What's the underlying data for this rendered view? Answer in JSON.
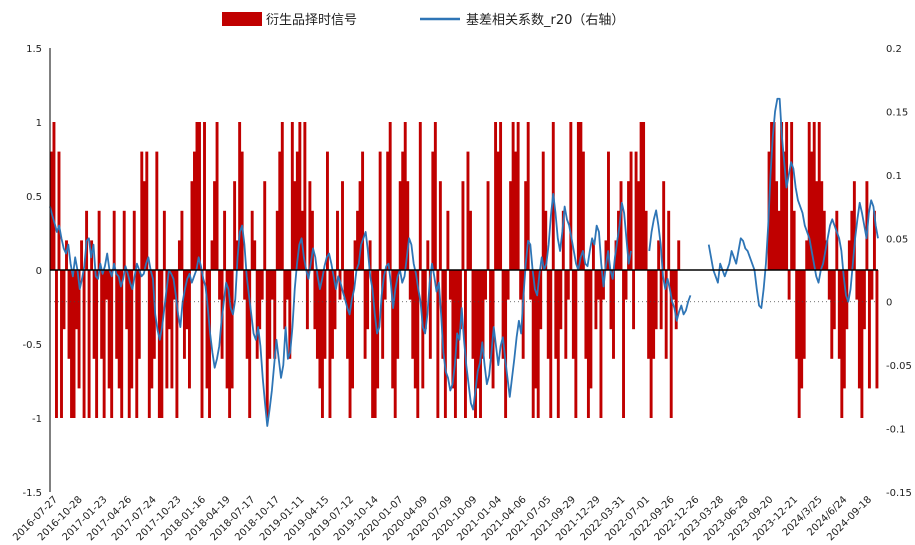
{
  "chart_data": {
    "type": "bar+line",
    "title": "",
    "legend": {
      "placement": "top-center",
      "entries": [
        "衍生品择时信号",
        "基差相关系数_r20（右轴）"
      ]
    },
    "colors": {
      "signal": "#c00000",
      "corr": "#2e75b6"
    },
    "left_axis": {
      "ylim": [
        -1.5,
        1.5
      ],
      "ticks": [
        "1.5",
        "1",
        "0.5",
        "0",
        "-0.5",
        "-1",
        "-1.5"
      ],
      "tick_values": [
        1.5,
        1,
        0.5,
        0,
        -0.5,
        -1,
        -1.5
      ]
    },
    "right_axis": {
      "ylim": [
        -0.15,
        0.2
      ],
      "ticks": [
        "0.2",
        "0.15",
        "0.1",
        "0.05",
        "0",
        "-0.05",
        "-0.1",
        "-0.15"
      ],
      "tick_values": [
        0.2,
        0.15,
        0.1,
        0.05,
        0,
        -0.05,
        -0.1,
        -0.15
      ]
    },
    "x_labels": [
      "2016-07-27",
      "2016-10-28",
      "2017-01-23",
      "2017-04-26",
      "2017-07-24",
      "2017-10-23",
      "2018-01-16",
      "2018-04-19",
      "2018-07-17",
      "2018-10-17",
      "2019-01-11",
      "2019-04-15",
      "2019-07-12",
      "2019-10-14",
      "2020-01-07",
      "2020-04-09",
      "2020-07-09",
      "2020-10-09",
      "2021-01-04",
      "2021-04-06",
      "2021-07-05",
      "2021-09-29",
      "2021-12-29",
      "2022-03-31",
      "2022-07-01",
      "2022-09-26",
      "2022-12-26",
      "2023-03-28",
      "2023-06-28",
      "2023-09-20",
      "2023-12-21",
      "2024/3/25",
      "2024/6/24",
      "2024-09-18"
    ],
    "series": [
      {
        "name": "衍生品择时信号",
        "kind": "bar",
        "axis": "left",
        "values": [
          0.8,
          1,
          -1,
          0.8,
          -1,
          -0.4,
          0.2,
          -0.6,
          -1,
          -1,
          -0.4,
          -0.8,
          0.2,
          -1,
          0.4,
          -1,
          0.2,
          -0.6,
          -1,
          0.4,
          -0.6,
          -1,
          -0.2,
          -0.8,
          -1,
          0.4,
          -0.6,
          -0.8,
          -1,
          0.4,
          -0.4,
          -1,
          -0.8,
          0.4,
          -1,
          -0.6,
          0.8,
          0.6,
          0.8,
          -1,
          -0.8,
          -0.6,
          0.8,
          -1,
          -1,
          0.4,
          -0.8,
          -0.4,
          -0.8,
          -0.2,
          -1,
          0.2,
          0.4,
          -0.6,
          -0.4,
          -0.8,
          0.6,
          0.8,
          1,
          1,
          -1,
          1,
          -0.8,
          -1,
          0.2,
          0.6,
          1,
          -0.2,
          -0.6,
          0.4,
          -0.8,
          -1,
          -0.8,
          0.6,
          0.2,
          1,
          0.8,
          -0.2,
          -0.6,
          -1,
          0.4,
          0.2,
          -0.6,
          -0.4,
          -0.2,
          0.6,
          -1,
          -0.6,
          -0.2,
          -0.6,
          0.4,
          0.8,
          1,
          -0.4,
          -0.2,
          -0.6,
          1,
          0.6,
          0.8,
          1,
          0.4,
          1,
          -0.4,
          0.6,
          0.4,
          -0.4,
          -0.6,
          -0.8,
          -1,
          -0.6,
          0.8,
          -1,
          -0.6,
          -0.4,
          0.4,
          -0.2,
          0.6,
          -0.2,
          -0.6,
          -1,
          -0.8,
          0.2,
          0.4,
          0.6,
          0.8,
          -0.6,
          -0.4,
          0.2,
          -1,
          -1,
          -0.8,
          0.8,
          -0.6,
          -0.2,
          0.8,
          1,
          -0.8,
          -1,
          -0.6,
          0.6,
          0.8,
          1,
          0.6,
          -0.2,
          -0.6,
          -0.8,
          -1,
          1,
          -0.8,
          -0.4,
          0.2,
          -0.6,
          0.8,
          1,
          -1,
          0.6,
          -0.6,
          -1,
          0.4,
          -0.2,
          -0.8,
          -1,
          -0.6,
          -0.4,
          0.6,
          -1,
          0.8,
          0.4,
          -0.6,
          -1,
          -0.8,
          -1,
          -0.6,
          -0.2,
          0.6,
          -0.6,
          -0.8,
          1,
          0.8,
          1,
          -0.6,
          -1,
          -0.2,
          0.6,
          1,
          0.8,
          1,
          -0.2,
          -0.6,
          0.6,
          1,
          -0.2,
          -1,
          -0.8,
          -1,
          -0.4,
          0.8,
          0.4,
          -0.6,
          -1,
          1,
          -0.6,
          -1,
          -0.4,
          0.4,
          -0.6,
          -0.2,
          1,
          -0.6,
          -1,
          1,
          1,
          0.8,
          -0.6,
          -1,
          -0.8,
          0.2,
          -0.4,
          -0.2,
          -1,
          -0.2,
          0.2,
          0.8,
          -0.4,
          -0.6,
          0.2,
          0.4,
          0.6,
          -1,
          -0.2,
          0.6,
          0.8,
          -0.4,
          0.8,
          0.6,
          1,
          1,
          0.4,
          -0.6,
          -1,
          -0.6,
          -0.4,
          0.2,
          -0.4,
          0.6,
          -0.6,
          0.4,
          -1,
          -0.2,
          -0.4,
          0.2,
          0,
          0,
          0,
          0,
          0,
          0,
          0,
          0,
          0,
          0,
          0,
          0,
          0,
          0,
          0,
          0,
          0,
          0,
          0,
          0,
          0,
          0,
          0,
          0,
          0,
          0,
          0,
          0,
          0,
          0,
          0,
          0,
          0,
          0,
          0,
          0.8,
          1,
          1,
          0.6,
          0.4,
          1,
          0.8,
          1,
          -0.2,
          1,
          0.4,
          -0.6,
          -1,
          -0.8,
          -0.6,
          0.2,
          1,
          0.8,
          1,
          0.6,
          1,
          0.6,
          0.4,
          0.2,
          -0.2,
          -0.6,
          -0.4,
          0.4,
          -0.6,
          -1,
          -0.8,
          -0.4,
          0.2,
          0.4,
          0.6,
          -0.2,
          -0.8,
          -1,
          -0.4,
          0.6,
          -0.8,
          -0.2,
          0.4,
          -0.8
        ]
      },
      {
        "name": "基差相关系数_r20（右轴）",
        "kind": "line",
        "axis": "right",
        "values": [
          0.075,
          0.068,
          0.062,
          0.055,
          0.06,
          0.05,
          0.042,
          0.038,
          0.045,
          0.03,
          0.02,
          0.035,
          0.025,
          0.01,
          0.018,
          0.028,
          0.048,
          0.05,
          0.035,
          0.045,
          0.02,
          0.018,
          0.03,
          0.022,
          0.028,
          0.038,
          0.025,
          0.02,
          0.03,
          0.022,
          0.02,
          0.012,
          0.018,
          0.028,
          0.022,
          0.015,
          0.01,
          0.02,
          0.03,
          0.025,
          0.02,
          0.022,
          0.03,
          0.035,
          0.025,
          0.018,
          -0.01,
          -0.022,
          -0.03,
          -0.02,
          -0.005,
          0.01,
          0.025,
          0.022,
          0.018,
          0.005,
          -0.01,
          -0.02,
          0,
          0.01,
          0.018,
          0.022,
          0.015,
          0.02,
          0.025,
          0.035,
          0.028,
          0.018,
          0.012,
          -0.005,
          -0.025,
          -0.04,
          -0.052,
          -0.045,
          -0.035,
          -0.015,
          0,
          0.015,
          0.01,
          -0.005,
          -0.01,
          0.002,
          0.035,
          0.055,
          0.06,
          0.045,
          0.02,
          0.005,
          -0.01,
          -0.025,
          -0.03,
          -0.02,
          -0.035,
          -0.06,
          -0.08,
          -0.098,
          -0.085,
          -0.07,
          -0.05,
          -0.03,
          -0.045,
          -0.06,
          -0.05,
          -0.02,
          -0.045,
          -0.04,
          -0.02,
          0.01,
          0.03,
          0.045,
          0.05,
          0.035,
          0.025,
          0.018,
          0.03,
          0.042,
          0.035,
          0.02,
          0.01,
          0.018,
          0.028,
          0.035,
          0.038,
          0.03,
          0.02,
          0.01,
          0.02,
          0.015,
          0.008,
          0.002,
          -0.005,
          -0.01,
          0.002,
          0.01,
          0.025,
          0.03,
          0.045,
          0.05,
          0.055,
          0.04,
          0.02,
          0.01,
          -0.01,
          -0.025,
          -0.02,
          0.005,
          0.02,
          0.028,
          0.03,
          0.015,
          -0.005,
          0.01,
          0.02,
          0.025,
          0.015,
          0.02,
          0.035,
          0.05,
          0.045,
          0.03,
          0.022,
          0.01,
          0,
          -0.02,
          -0.025,
          -0.01,
          0.015,
          0.03,
          0.02,
          0.008,
          0.015,
          -0.01,
          -0.04,
          -0.055,
          -0.06,
          -0.07,
          -0.065,
          -0.05,
          -0.025,
          -0.03,
          -0.005,
          -0.03,
          -0.05,
          -0.065,
          -0.08,
          -0.085,
          -0.07,
          -0.055,
          -0.048,
          -0.032,
          -0.05,
          -0.065,
          -0.058,
          -0.04,
          -0.02,
          -0.035,
          -0.05,
          -0.035,
          -0.028,
          -0.045,
          -0.06,
          -0.075,
          -0.06,
          -0.045,
          -0.028,
          -0.015,
          -0.025,
          0.005,
          0.03,
          0.048,
          0.045,
          0.025,
          0.01,
          0.005,
          0.022,
          0.035,
          0.025,
          0.03,
          0.045,
          0.068,
          0.085,
          0.07,
          0.05,
          0.04,
          0.055,
          0.075,
          0.065,
          0.06,
          0.05,
          0.04,
          0.03,
          0.025,
          0.035,
          0.04,
          0.03,
          0.028,
          0.04,
          0.05,
          0.045,
          0.06,
          0.055,
          0.03,
          0.012,
          0.028,
          0.04,
          0.025,
          0.018,
          0.035,
          0.048,
          0.06,
          0.078,
          0.07,
          0.05,
          0.03,
          0.04,
          null,
          null,
          null,
          null,
          null,
          null,
          null,
          0.04,
          0.055,
          0.065,
          0.072,
          0.06,
          0.045,
          0.02,
          0.01,
          0.018,
          0.01,
          0,
          -0.005,
          -0.015,
          -0.008,
          -0.003,
          -0.01,
          -0.007,
          0,
          0.005,
          null,
          null,
          null,
          null,
          null,
          null,
          null,
          0.045,
          0.035,
          0.025,
          0.02,
          0.015,
          0.03,
          0.025,
          0.02,
          0.025,
          0.03,
          0.04,
          0.035,
          0.03,
          0.04,
          0.05,
          0.048,
          0.042,
          0.04,
          0.035,
          0.03,
          0.025,
          0.01,
          -0.003,
          -0.005,
          0.01,
          0.03,
          0.06,
          0.1,
          0.13,
          0.15,
          0.16,
          0.16,
          0.13,
          0.11,
          0.09,
          0.1,
          0.11,
          0.105,
          0.09,
          0.08,
          0.075,
          0.07,
          0.06,
          0.055,
          0.05,
          0.04,
          0.03,
          0.02,
          0.015,
          0.025,
          0.03,
          0.04,
          0.05,
          0.06,
          0.065,
          0.06,
          0.055,
          0.05,
          0.04,
          0.02,
          0.005,
          0,
          0.01,
          0.03,
          0.05,
          0.065,
          0.078,
          0.07,
          0.06,
          0.05,
          0.07,
          0.08,
          0.075,
          0.06,
          0.05
        ]
      }
    ]
  }
}
